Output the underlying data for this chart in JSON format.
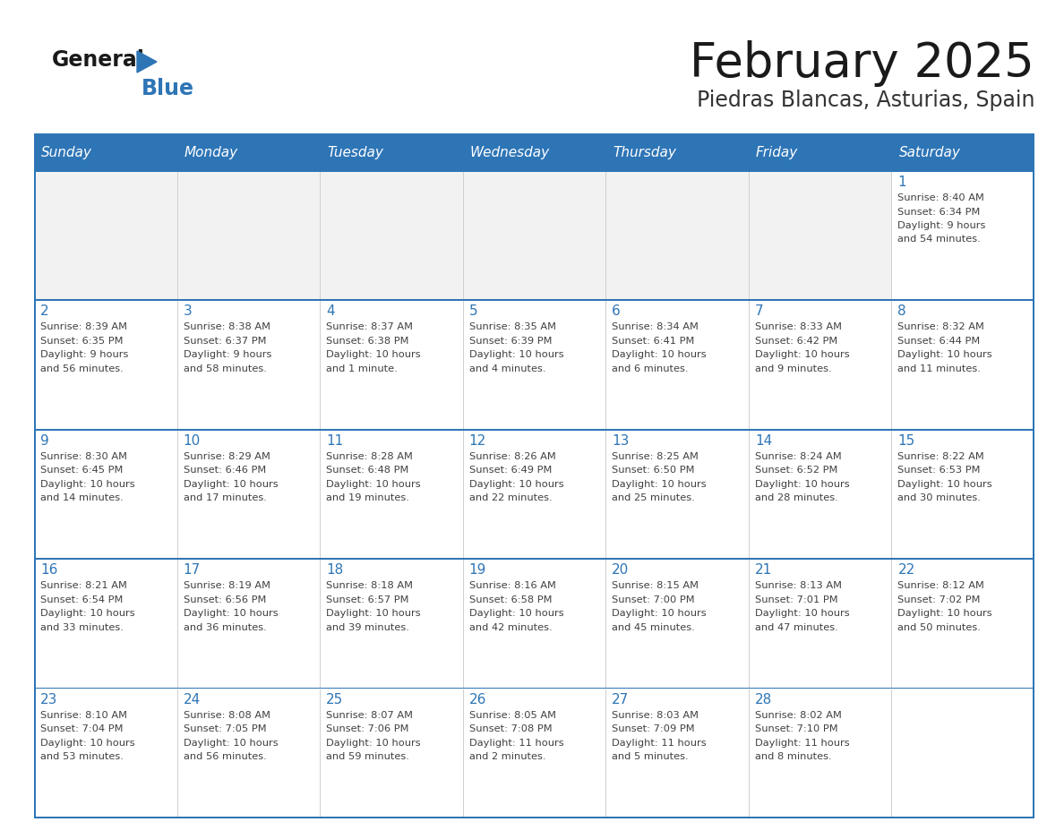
{
  "title": "February 2025",
  "subtitle": "Piedras Blancas, Asturias, Spain",
  "header_bg": "#2E75B6",
  "header_text_color": "#FFFFFF",
  "cell_bg_white": "#FFFFFF",
  "cell_bg_gray": "#F2F2F2",
  "border_color": "#2E75B6",
  "divider_color": "#2E75B6",
  "day_headers": [
    "Sunday",
    "Monday",
    "Tuesday",
    "Wednesday",
    "Thursday",
    "Friday",
    "Saturday"
  ],
  "title_color": "#1a1a1a",
  "subtitle_color": "#333333",
  "day_number_color": "#2E75B6",
  "cell_text_color": "#404040",
  "logo_general_color": "#1a1a1a",
  "logo_blue_color": "#2E75B6",
  "weeks": [
    [
      null,
      null,
      null,
      null,
      null,
      null,
      {
        "day": 1,
        "sunrise": "8:40 AM",
        "sunset": "6:34 PM",
        "daylight": "9 hours and 54 minutes."
      }
    ],
    [
      {
        "day": 2,
        "sunrise": "8:39 AM",
        "sunset": "6:35 PM",
        "daylight": "9 hours and 56 minutes."
      },
      {
        "day": 3,
        "sunrise": "8:38 AM",
        "sunset": "6:37 PM",
        "daylight": "9 hours and 58 minutes."
      },
      {
        "day": 4,
        "sunrise": "8:37 AM",
        "sunset": "6:38 PM",
        "daylight": "10 hours and 1 minute."
      },
      {
        "day": 5,
        "sunrise": "8:35 AM",
        "sunset": "6:39 PM",
        "daylight": "10 hours and 4 minutes."
      },
      {
        "day": 6,
        "sunrise": "8:34 AM",
        "sunset": "6:41 PM",
        "daylight": "10 hours and 6 minutes."
      },
      {
        "day": 7,
        "sunrise": "8:33 AM",
        "sunset": "6:42 PM",
        "daylight": "10 hours and 9 minutes."
      },
      {
        "day": 8,
        "sunrise": "8:32 AM",
        "sunset": "6:44 PM",
        "daylight": "10 hours and 11 minutes."
      }
    ],
    [
      {
        "day": 9,
        "sunrise": "8:30 AM",
        "sunset": "6:45 PM",
        "daylight": "10 hours and 14 minutes."
      },
      {
        "day": 10,
        "sunrise": "8:29 AM",
        "sunset": "6:46 PM",
        "daylight": "10 hours and 17 minutes."
      },
      {
        "day": 11,
        "sunrise": "8:28 AM",
        "sunset": "6:48 PM",
        "daylight": "10 hours and 19 minutes."
      },
      {
        "day": 12,
        "sunrise": "8:26 AM",
        "sunset": "6:49 PM",
        "daylight": "10 hours and 22 minutes."
      },
      {
        "day": 13,
        "sunrise": "8:25 AM",
        "sunset": "6:50 PM",
        "daylight": "10 hours and 25 minutes."
      },
      {
        "day": 14,
        "sunrise": "8:24 AM",
        "sunset": "6:52 PM",
        "daylight": "10 hours and 28 minutes."
      },
      {
        "day": 15,
        "sunrise": "8:22 AM",
        "sunset": "6:53 PM",
        "daylight": "10 hours and 30 minutes."
      }
    ],
    [
      {
        "day": 16,
        "sunrise": "8:21 AM",
        "sunset": "6:54 PM",
        "daylight": "10 hours and 33 minutes."
      },
      {
        "day": 17,
        "sunrise": "8:19 AM",
        "sunset": "6:56 PM",
        "daylight": "10 hours and 36 minutes."
      },
      {
        "day": 18,
        "sunrise": "8:18 AM",
        "sunset": "6:57 PM",
        "daylight": "10 hours and 39 minutes."
      },
      {
        "day": 19,
        "sunrise": "8:16 AM",
        "sunset": "6:58 PM",
        "daylight": "10 hours and 42 minutes."
      },
      {
        "day": 20,
        "sunrise": "8:15 AM",
        "sunset": "7:00 PM",
        "daylight": "10 hours and 45 minutes."
      },
      {
        "day": 21,
        "sunrise": "8:13 AM",
        "sunset": "7:01 PM",
        "daylight": "10 hours and 47 minutes."
      },
      {
        "day": 22,
        "sunrise": "8:12 AM",
        "sunset": "7:02 PM",
        "daylight": "10 hours and 50 minutes."
      }
    ],
    [
      {
        "day": 23,
        "sunrise": "8:10 AM",
        "sunset": "7:04 PM",
        "daylight": "10 hours and 53 minutes."
      },
      {
        "day": 24,
        "sunrise": "8:08 AM",
        "sunset": "7:05 PM",
        "daylight": "10 hours and 56 minutes."
      },
      {
        "day": 25,
        "sunrise": "8:07 AM",
        "sunset": "7:06 PM",
        "daylight": "10 hours and 59 minutes."
      },
      {
        "day": 26,
        "sunrise": "8:05 AM",
        "sunset": "7:08 PM",
        "daylight": "11 hours and 2 minutes."
      },
      {
        "day": 27,
        "sunrise": "8:03 AM",
        "sunset": "7:09 PM",
        "daylight": "11 hours and 5 minutes."
      },
      {
        "day": 28,
        "sunrise": "8:02 AM",
        "sunset": "7:10 PM",
        "daylight": "11 hours and 8 minutes."
      },
      null
    ]
  ]
}
